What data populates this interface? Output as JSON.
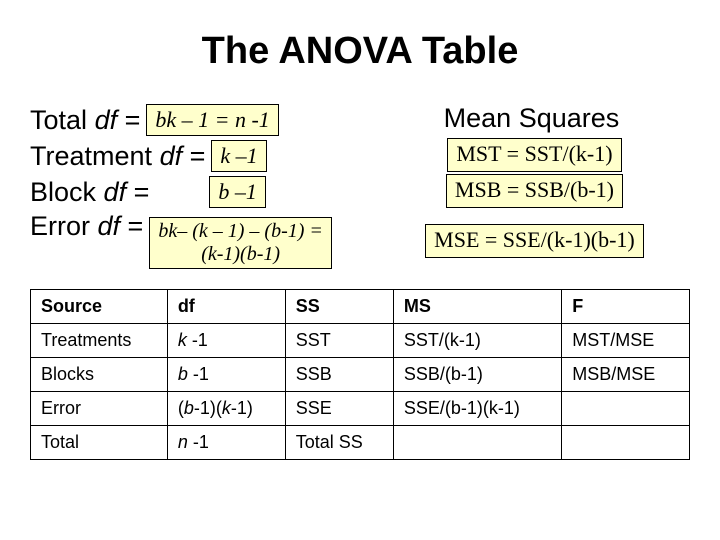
{
  "title": "The ANOVA Table",
  "left": {
    "total_label": "Total",
    "treatment_label": "Treatment",
    "block_label": "Block",
    "error_label": "Error",
    "df_eq": "df =",
    "df_word": "df",
    "total_box": "bk – 1 = n -1",
    "treatment_box": "k –1",
    "block_box": "b –1",
    "error_box_line1": "bk– (k – 1) – (b-1) =",
    "error_box_line2": "(k-1)(b-1)"
  },
  "right": {
    "title": "Mean Squares",
    "mst": "MST = SST/(k-1)",
    "msb": "MSB = SSB/(b-1)",
    "mse": "MSE = SSE/(k-1)(b-1)"
  },
  "table": {
    "headers": [
      "Source",
      "df",
      "SS",
      "MS",
      "F"
    ],
    "rows": [
      [
        "Treatments",
        "k -1",
        "SST",
        "SST/(k-1)",
        "MST/MSE"
      ],
      [
        "Blocks",
        "b -1",
        "SSB",
        "SSB/(b-1)",
        "MSB/MSE"
      ],
      [
        "Error",
        "(b-1)(k-1)",
        "SSE",
        "SSE/(b-1)(k-1)",
        ""
      ],
      [
        "Total",
        "n -1",
        "Total SS",
        "",
        ""
      ]
    ],
    "italic_cells": [
      [
        0,
        1
      ],
      [
        1,
        1
      ],
      [
        2,
        1
      ],
      [
        3,
        1
      ]
    ]
  },
  "colors": {
    "box_bg": "#ffffcc",
    "border": "#000000",
    "bg": "#ffffff"
  }
}
